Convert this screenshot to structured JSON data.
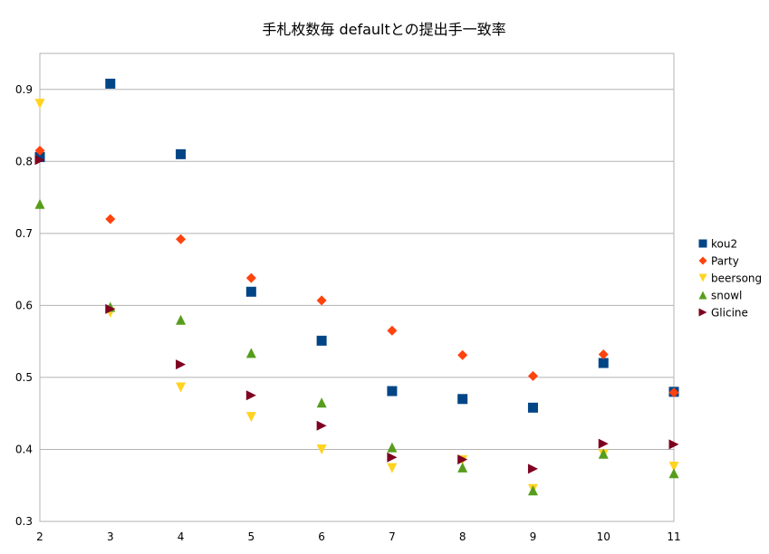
{
  "chart_data": {
    "type": "scatter",
    "title": "手札枚数毎 defaultとの提出手一致率",
    "xlabel": "",
    "ylabel": "",
    "xlim": [
      2,
      11
    ],
    "ylim": [
      0.3,
      0.95
    ],
    "xticks": [
      "2",
      "3",
      "4",
      "5",
      "6",
      "7",
      "8",
      "9",
      "10",
      "11"
    ],
    "yticks": [
      "0.3",
      "0.4",
      "0.5",
      "0.6",
      "0.7",
      "0.8",
      "0.9"
    ],
    "grid": "horizontal",
    "legend_position": "right",
    "x": [
      2,
      3,
      4,
      5,
      6,
      7,
      8,
      9,
      10,
      11
    ],
    "series": [
      {
        "name": "kou2",
        "marker": "square",
        "color": "#004586",
        "values": [
          0.806,
          0.908,
          0.81,
          0.619,
          0.551,
          0.481,
          0.47,
          0.458,
          0.52,
          0.48
        ]
      },
      {
        "name": "Party",
        "marker": "diamond",
        "color": "#ff420e",
        "values": [
          0.815,
          0.72,
          0.692,
          0.638,
          0.607,
          0.565,
          0.531,
          0.502,
          0.532,
          0.479
        ]
      },
      {
        "name": "beersong",
        "marker": "triangle-down",
        "color": "#ffd320",
        "values": [
          0.88,
          0.59,
          0.486,
          0.445,
          0.4,
          0.374,
          0.385,
          0.345,
          0.393,
          0.376
        ]
      },
      {
        "name": "snowl",
        "marker": "triangle-up",
        "color": "#579d1c",
        "values": [
          0.741,
          0.598,
          0.58,
          0.534,
          0.465,
          0.403,
          0.375,
          0.343,
          0.394,
          0.367
        ]
      },
      {
        "name": "Glicine",
        "marker": "triangle-right",
        "color": "#7e0021",
        "values": [
          0.802,
          0.595,
          0.518,
          0.475,
          0.433,
          0.389,
          0.386,
          0.373,
          0.408,
          0.407
        ]
      }
    ]
  }
}
